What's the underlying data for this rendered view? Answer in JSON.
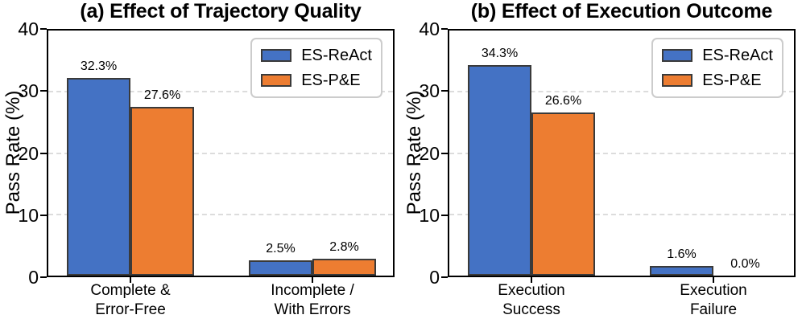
{
  "style": {
    "background": "#ffffff",
    "axis_color": "#000000",
    "grid_color": "#dcdcdc",
    "bar_edge_color": "#3a3a3a",
    "legend_border_color": "#cccccc",
    "series_blue": "#4472c4",
    "series_orange": "#ed7d31"
  },
  "chart_data": [
    {
      "type": "bar",
      "title": "(a) Effect of Trajectory Quality",
      "ylabel": "Pass Rate (%)",
      "ylim": [
        0,
        40
      ],
      "yticks": [
        0,
        10,
        20,
        30,
        40
      ],
      "grid": "horizontal-dashed",
      "legend_position": "upper-right",
      "categories": [
        "Complete &\nError-Free",
        "Incomplete /\nWith Errors"
      ],
      "series": [
        {
          "name": "ES-ReAct",
          "color": "#4472c4",
          "values": [
            32.3,
            2.5
          ],
          "labels": [
            "32.3%",
            "2.5%"
          ]
        },
        {
          "name": "ES-P&E",
          "color": "#ed7d31",
          "values": [
            27.6,
            2.8
          ],
          "labels": [
            "27.6%",
            "2.8%"
          ]
        }
      ]
    },
    {
      "type": "bar",
      "title": "(b) Effect of Execution Outcome",
      "ylabel": "Pass Rate (%)",
      "ylim": [
        0,
        40
      ],
      "yticks": [
        0,
        10,
        20,
        30,
        40
      ],
      "grid": "horizontal-dashed",
      "legend_position": "upper-right",
      "categories": [
        "Execution\nSuccess",
        "Execution\nFailure"
      ],
      "series": [
        {
          "name": "ES-ReAct",
          "color": "#4472c4",
          "values": [
            34.3,
            1.6
          ],
          "labels": [
            "34.3%",
            "1.6%"
          ]
        },
        {
          "name": "ES-P&E",
          "color": "#ed7d31",
          "values": [
            26.6,
            0.0
          ],
          "labels": [
            "26.6%",
            "0.0%"
          ]
        }
      ]
    }
  ]
}
